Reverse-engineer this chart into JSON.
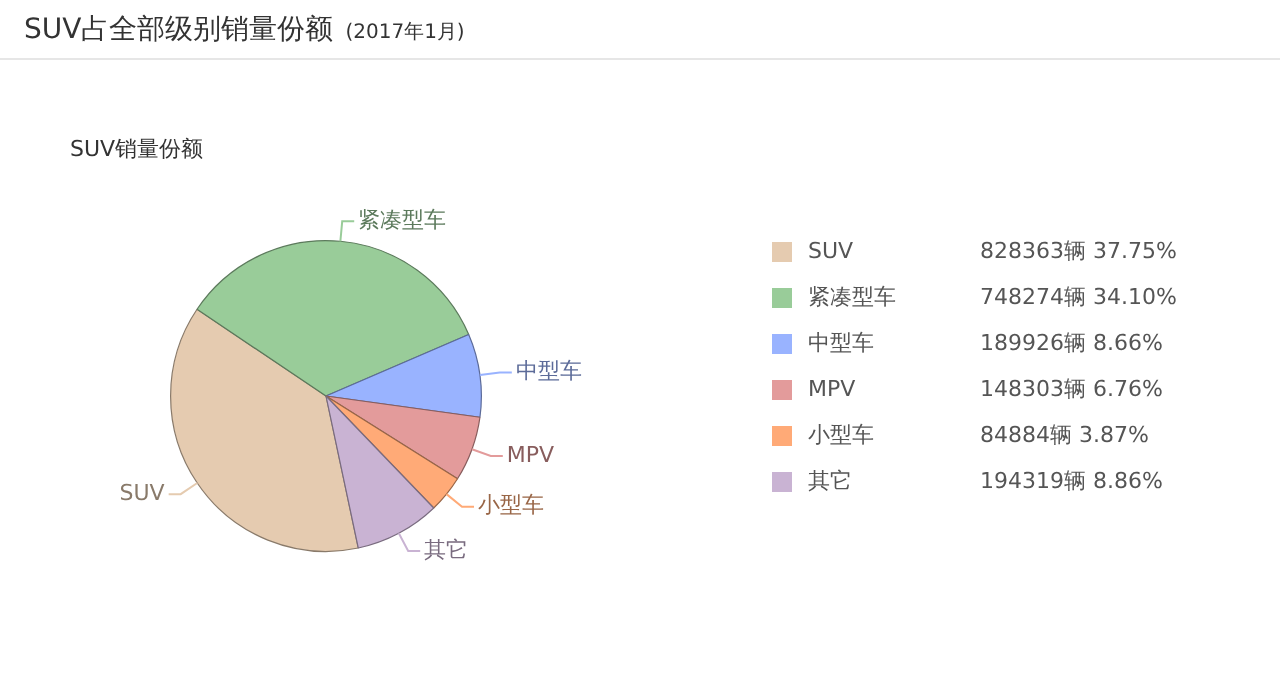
{
  "chart_data": {
    "type": "pie",
    "title": "SUV占全部级别销量份额",
    "subtitle": "(2017年1月)",
    "annotations": [
      "SUV销量份额"
    ],
    "categories": [
      "SUV",
      "紧凑型车",
      "中型车",
      "MPV",
      "小型车",
      "其它"
    ],
    "values": [
      828363,
      748274,
      189926,
      148303,
      84884,
      194319
    ],
    "colors": [
      "#e5cbb0",
      "#99cc99",
      "#99b3ff",
      "#e39b9b",
      "#ffaa77",
      "#c9b3d3"
    ],
    "value_labels": [
      "828363辆 37.75%",
      "748274辆 34.10%",
      "189926辆 8.66%",
      "148303辆 6.76%",
      "84884辆 3.87%",
      "194319辆 8.86%"
    ],
    "legend": "right"
  }
}
